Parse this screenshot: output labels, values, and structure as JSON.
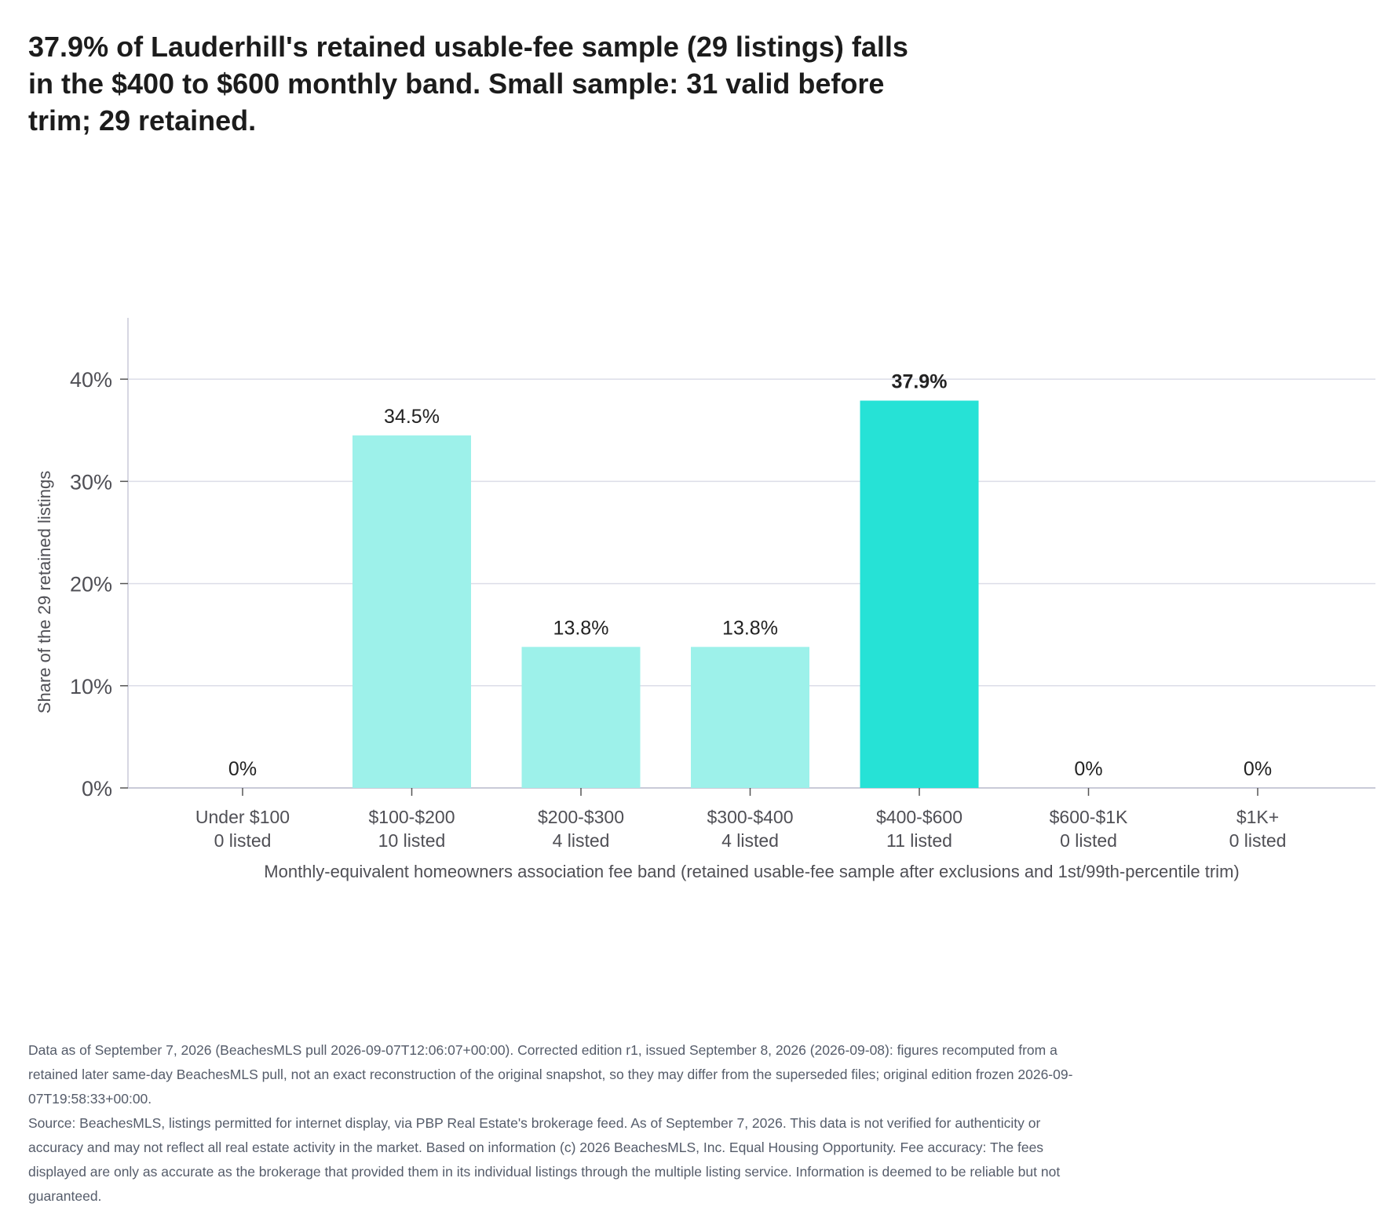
{
  "chart_data": {
    "type": "bar",
    "title": "37.9% of Lauderhill's retained usable-fee sample (29 listings) falls in the $400 to $600 monthly band. Small sample: 31 valid before trim; 29 retained.",
    "xlabel": "Monthly-equivalent homeowners association fee band (retained usable-fee sample after exclusions and 1st/99th-percentile trim)",
    "ylabel": "Share of the 29 retained listings",
    "ylim": [
      0,
      46
    ],
    "yticks": [
      0,
      10,
      20,
      30,
      40
    ],
    "ytick_labels": [
      "0%",
      "10%",
      "20%",
      "30%",
      "40%"
    ],
    "grid": true,
    "categories": [
      "Under $100",
      "$100-$200",
      "$200-$300",
      "$300-$400",
      "$400-$600",
      "$600-$1K",
      "$1K+"
    ],
    "counts": [
      "0 listed",
      "10 listed",
      "4 listed",
      "4 listed",
      "11 listed",
      "0 listed",
      "0 listed"
    ],
    "values": [
      0,
      34.5,
      13.8,
      13.8,
      37.9,
      0,
      0
    ],
    "value_labels": [
      "0%",
      "34.5%",
      "13.8%",
      "13.8%",
      "37.9%",
      "0%",
      "0%"
    ],
    "highlight_index": 4,
    "colors": {
      "bar": "#9df1ea",
      "highlight": "#26e2d6",
      "grid": "#dcdde8",
      "axis": "#c9cad8",
      "tick_text": "#4f4f55",
      "value_text": "#222222"
    }
  },
  "footnotes": [
    "Data as of September 7, 2026 (BeachesMLS pull 2026-09-07T12:06:07+00:00). Corrected edition r1, issued September 8, 2026 (2026-09-08): figures recomputed from a retained later same-day BeachesMLS pull, not an exact reconstruction of the original snapshot, so they may differ from the superseded files; original edition frozen 2026-09-07T19:58:33+00:00.",
    "Source: BeachesMLS, listings permitted for internet display, via PBP Real Estate's brokerage feed. As of September 7, 2026. This data is not verified for authenticity or accuracy and may not reflect all real estate activity in the market. Based on information (c) 2026 BeachesMLS, Inc. Equal Housing Opportunity. Fee accuracy: The fees displayed are only as accurate as the brokerage that provided them in its individual listings through the multiple listing service. Information is deemed to be reliable but not guaranteed."
  ]
}
